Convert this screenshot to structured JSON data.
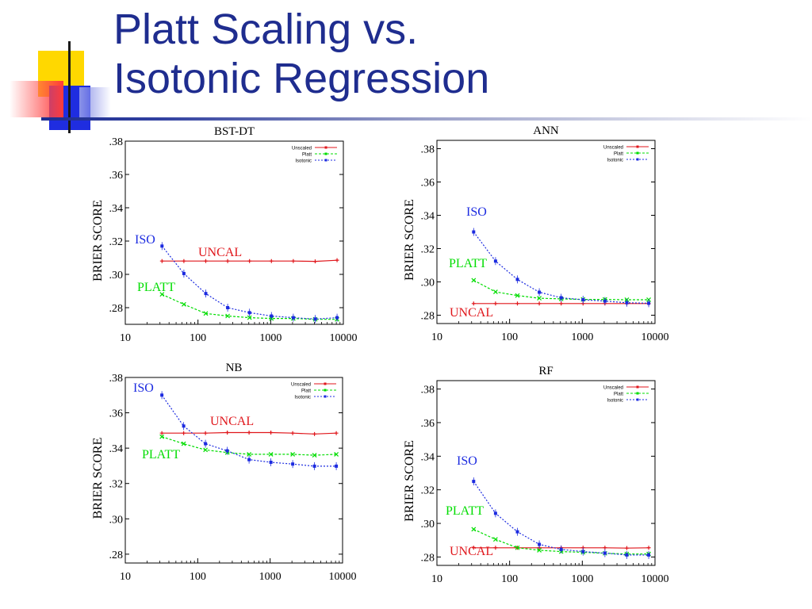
{
  "slide": {
    "title_line1": "Platt Scaling vs.",
    "title_line2": "Isotonic Regression"
  },
  "colors": {
    "title": "#1f2d8f",
    "unscaled": "#e0161b",
    "platt": "#00dd00",
    "isotonic": "#1c2be0",
    "deco_yellow": "#ffd800",
    "deco_red": "#ff3b3b",
    "deco_blue": "#1f2de0"
  },
  "chart_data": [
    {
      "type": "line",
      "title": "BST-DT",
      "ylabel": "BRIER SCORE",
      "xscale": "log",
      "xlim": [
        10,
        10000
      ],
      "ylim": [
        0.27,
        0.38
      ],
      "xticks": [
        10,
        100,
        1000,
        10000
      ],
      "xtick_labels": [
        "10",
        "100",
        "1000",
        "10000"
      ],
      "yticks": [
        0.28,
        0.3,
        0.32,
        0.34,
        0.36,
        0.38
      ],
      "ytick_labels": [
        ".28",
        ".30",
        ".32",
        ".34",
        ".36",
        ".38"
      ],
      "legend": [
        "Unscaled",
        "Platt",
        "Isotonic"
      ],
      "legend_position": "top-right",
      "x": [
        32,
        64,
        128,
        256,
        512,
        1024,
        2048,
        4096,
        8192
      ],
      "series": [
        {
          "name": "Unscaled",
          "values": [
            0.308,
            0.308,
            0.308,
            0.308,
            0.308,
            0.308,
            0.308,
            0.3078,
            0.3085
          ]
        },
        {
          "name": "Platt",
          "values": [
            0.288,
            0.282,
            0.2765,
            0.275,
            0.274,
            0.2735,
            0.2735,
            0.273,
            0.273
          ]
        },
        {
          "name": "Isotonic",
          "values": [
            0.317,
            0.3005,
            0.2885,
            0.28,
            0.277,
            0.275,
            0.274,
            0.2732,
            0.274
          ]
        }
      ],
      "annotations": [
        {
          "text": "ISO",
          "series": "Isotonic"
        },
        {
          "text": "UNCAL",
          "series": "Unscaled"
        },
        {
          "text": "PLATT",
          "series": "Platt"
        }
      ]
    },
    {
      "type": "line",
      "title": "ANN",
      "ylabel": "BRIER SCORE",
      "xscale": "log",
      "xlim": [
        10,
        10000
      ],
      "ylim": [
        0.275,
        0.385
      ],
      "xticks": [
        10,
        100,
        1000,
        10000
      ],
      "xtick_labels": [
        "10",
        "100",
        "1000",
        "10000"
      ],
      "yticks": [
        0.28,
        0.3,
        0.32,
        0.34,
        0.36,
        0.38
      ],
      "ytick_labels": [
        ".28",
        ".30",
        ".32",
        ".34",
        ".36",
        ".38"
      ],
      "legend": [
        "Unscaled",
        "Platt",
        "Isotonic"
      ],
      "legend_position": "top-right",
      "x": [
        32,
        64,
        128,
        256,
        512,
        1024,
        2048,
        4096,
        8192
      ],
      "series": [
        {
          "name": "Unscaled",
          "values": [
            0.287,
            0.287,
            0.287,
            0.287,
            0.287,
            0.287,
            0.287,
            0.287,
            0.287
          ]
        },
        {
          "name": "Platt",
          "values": [
            0.301,
            0.294,
            0.2918,
            0.2902,
            0.2898,
            0.2895,
            0.2895,
            0.2893,
            0.2893
          ]
        },
        {
          "name": "Isotonic",
          "values": [
            0.33,
            0.3125,
            0.3015,
            0.2938,
            0.2905,
            0.2893,
            0.2885,
            0.2875,
            0.2872
          ]
        }
      ],
      "annotations": [
        {
          "text": "ISO",
          "series": "Isotonic"
        },
        {
          "text": "PLATT",
          "series": "Platt"
        },
        {
          "text": "UNCAL",
          "series": "Unscaled"
        }
      ]
    },
    {
      "type": "line",
      "title": "NB",
      "ylabel": "BRIER SCORE",
      "xscale": "log",
      "xlim": [
        10,
        10000
      ],
      "ylim": [
        0.275,
        0.38
      ],
      "xticks": [
        10,
        100,
        1000,
        10000
      ],
      "xtick_labels": [
        "10",
        "100",
        "1000",
        "10000"
      ],
      "yticks": [
        0.28,
        0.3,
        0.32,
        0.34,
        0.36,
        0.38
      ],
      "ytick_labels": [
        ".28",
        ".30",
        ".32",
        ".34",
        ".36",
        ".38"
      ],
      "legend": [
        "Unscaled",
        "Platt",
        "Isotonic"
      ],
      "legend_position": "top-right",
      "x": [
        32,
        64,
        128,
        256,
        512,
        1024,
        2048,
        4096,
        8192
      ],
      "series": [
        {
          "name": "Unscaled",
          "values": [
            0.3485,
            0.3485,
            0.3485,
            0.3488,
            0.3488,
            0.3488,
            0.3485,
            0.348,
            0.3485
          ]
        },
        {
          "name": "Platt",
          "values": [
            0.3465,
            0.3425,
            0.339,
            0.3375,
            0.3365,
            0.3365,
            0.3365,
            0.336,
            0.3365
          ]
        },
        {
          "name": "Isotonic",
          "values": [
            0.37,
            0.3525,
            0.3425,
            0.3385,
            0.3335,
            0.332,
            0.331,
            0.3298,
            0.3298
          ]
        }
      ],
      "annotations": [
        {
          "text": "ISO",
          "series": "Isotonic"
        },
        {
          "text": "UNCAL",
          "series": "Unscaled"
        },
        {
          "text": "PLATT",
          "series": "Platt"
        }
      ]
    },
    {
      "type": "line",
      "title": "RF",
      "ylabel": "BRIER SCORE",
      "xscale": "log",
      "xlim": [
        10,
        10000
      ],
      "ylim": [
        0.275,
        0.385
      ],
      "xticks": [
        10,
        100,
        1000,
        10000
      ],
      "xtick_labels": [
        "10",
        "100",
        "1000",
        "10000"
      ],
      "yticks": [
        0.28,
        0.3,
        0.32,
        0.34,
        0.36,
        0.38
      ],
      "ytick_labels": [
        ".28",
        ".30",
        ".32",
        ".34",
        ".36",
        ".38"
      ],
      "legend": [
        "Unscaled",
        "Platt",
        "Isotonic"
      ],
      "legend_position": "top-right",
      "x": [
        32,
        64,
        128,
        256,
        512,
        1024,
        2048,
        4096,
        8192
      ],
      "series": [
        {
          "name": "Unscaled",
          "values": [
            0.2855,
            0.2855,
            0.2855,
            0.2855,
            0.2855,
            0.2855,
            0.2855,
            0.2853,
            0.2855
          ]
        },
        {
          "name": "Platt",
          "values": [
            0.2965,
            0.2905,
            0.2855,
            0.284,
            0.2832,
            0.2828,
            0.2822,
            0.2818,
            0.2818
          ]
        },
        {
          "name": "Isotonic",
          "values": [
            0.325,
            0.306,
            0.295,
            0.2875,
            0.2845,
            0.2832,
            0.2823,
            0.2812,
            0.2812
          ]
        }
      ],
      "annotations": [
        {
          "text": "ISO",
          "series": "Isotonic"
        },
        {
          "text": "PLATT",
          "series": "Platt"
        },
        {
          "text": "UNCAL",
          "series": "Unscaled"
        }
      ]
    }
  ]
}
